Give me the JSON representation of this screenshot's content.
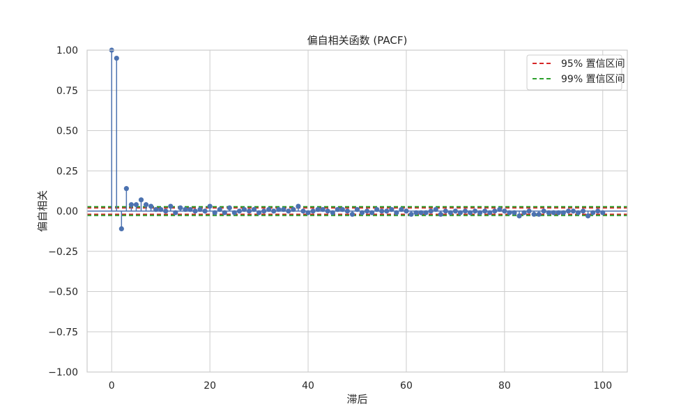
{
  "chart_data": {
    "type": "stem",
    "title": "偏自相关函数 (PACF)",
    "xlabel": "滞后",
    "ylabel": "偏自相关",
    "xlim": [
      -5,
      105
    ],
    "ylim": [
      -1.0,
      1.0
    ],
    "x_ticks": [
      0,
      20,
      40,
      60,
      80,
      100
    ],
    "x_tick_labels": [
      "0",
      "20",
      "40",
      "60",
      "80",
      "100"
    ],
    "y_ticks": [
      -1.0,
      -0.75,
      -0.5,
      -0.25,
      0.0,
      0.25,
      0.5,
      0.75,
      1.0
    ],
    "y_tick_labels": [
      "−1.00",
      "−0.75",
      "−0.50",
      "−0.25",
      "0.00",
      "0.25",
      "0.50",
      "0.75",
      "1.00"
    ],
    "grid": true,
    "legend_position": "top-right",
    "series": [
      {
        "name": "PACF",
        "color": "#4c72b0",
        "x": [
          0,
          1,
          2,
          3,
          4,
          5,
          6,
          7,
          8,
          9,
          10,
          11,
          12,
          13,
          14,
          15,
          16,
          17,
          18,
          19,
          20,
          21,
          22,
          23,
          24,
          25,
          26,
          27,
          28,
          29,
          30,
          31,
          32,
          33,
          34,
          35,
          36,
          37,
          38,
          39,
          40,
          41,
          42,
          43,
          44,
          45,
          46,
          47,
          48,
          49,
          50,
          51,
          52,
          53,
          54,
          55,
          56,
          57,
          58,
          59,
          60,
          61,
          62,
          63,
          64,
          65,
          66,
          67,
          68,
          69,
          70,
          71,
          72,
          73,
          74,
          75,
          76,
          77,
          78,
          79,
          80,
          81,
          82,
          83,
          84,
          85,
          86,
          87,
          88,
          89,
          90,
          91,
          92,
          93,
          94,
          95,
          96,
          97,
          98,
          99,
          100
        ],
        "values": [
          1.0,
          0.95,
          -0.11,
          0.14,
          0.04,
          0.04,
          0.07,
          0.04,
          0.03,
          0.01,
          0.01,
          0.0,
          0.03,
          -0.01,
          0.02,
          0.01,
          0.01,
          0.0,
          0.01,
          0.0,
          0.03,
          -0.01,
          0.01,
          -0.01,
          0.02,
          -0.01,
          0.0,
          0.01,
          0.0,
          0.01,
          -0.01,
          0.0,
          0.01,
          0.0,
          0.01,
          0.01,
          0.0,
          0.01,
          0.03,
          0.0,
          -0.01,
          0.0,
          0.01,
          0.01,
          0.0,
          -0.01,
          0.01,
          0.01,
          0.0,
          -0.02,
          0.01,
          -0.01,
          0.0,
          -0.01,
          0.01,
          0.0,
          0.0,
          0.01,
          -0.01,
          0.01,
          0.0,
          -0.02,
          -0.01,
          -0.01,
          -0.01,
          0.0,
          0.01,
          -0.02,
          0.0,
          -0.01,
          0.0,
          -0.01,
          0.0,
          -0.01,
          0.0,
          -0.01,
          0.0,
          -0.01,
          0.0,
          0.01,
          0.0,
          -0.01,
          -0.01,
          -0.03,
          -0.01,
          0.0,
          -0.02,
          -0.02,
          0.0,
          -0.01,
          -0.01,
          -0.01,
          -0.01,
          0.0,
          0.0,
          -0.01,
          0.0,
          -0.03,
          -0.01,
          0.0,
          -0.01
        ]
      }
    ],
    "confidence_bands": [
      {
        "name": "95% 置信区间",
        "value": 0.02,
        "color": "#d62728"
      },
      {
        "name": "99% 置信区间",
        "value": 0.027,
        "color": "#2ca02c"
      }
    ],
    "zero_line_color": "#4c72b0"
  }
}
